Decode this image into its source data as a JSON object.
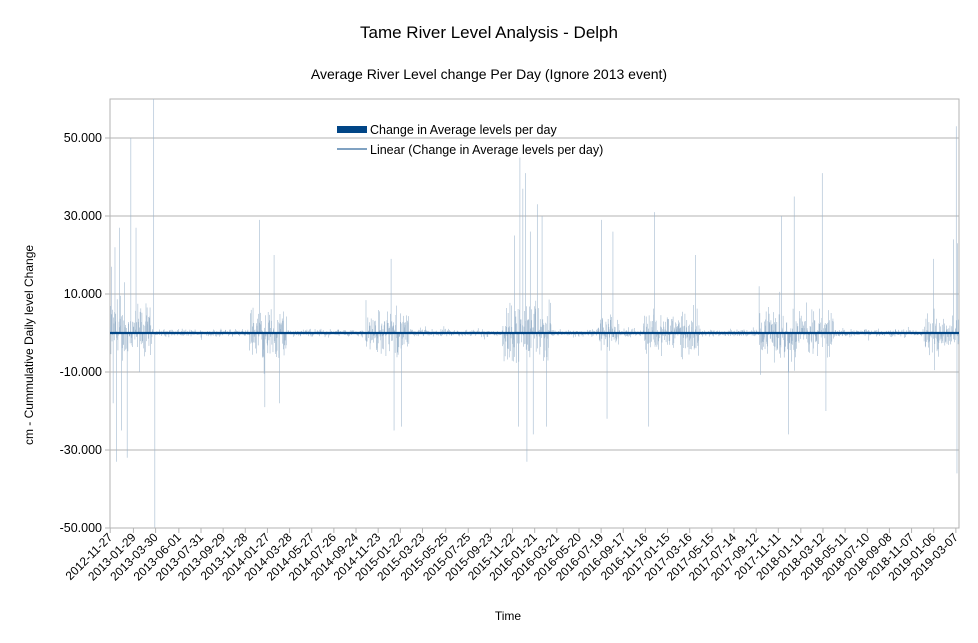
{
  "chart_data": {
    "type": "bar",
    "title": "Tame River Level Analysis - Delph",
    "subtitle": "Average River Level change Per Day (Ignore 2013 event)",
    "xlabel": "Time",
    "ylabel": "cm - Cummulative Daily level Change",
    "ylim": [
      -50,
      60
    ],
    "yticks": [
      50,
      30,
      10,
      -10,
      -30,
      -50
    ],
    "ytick_labels": [
      "50.000",
      "30.000",
      "10.000",
      "-10.000",
      "-30.000",
      "-50.000"
    ],
    "grid": true,
    "legend_position": "top-center",
    "x_tick_labels": [
      "2012-11-27",
      "2013-01-29",
      "2013-03-30",
      "2013-06-01",
      "2013-07-31",
      "2013-09-29",
      "2013-11-28",
      "2014-01-27",
      "2014-03-28",
      "2014-05-27",
      "2014-07-26",
      "2014-09-24",
      "2014-11-23",
      "2015-01-22",
      "2015-03-23",
      "2015-05-25",
      "2015-07-25",
      "2015-09-23",
      "2015-11-22",
      "2016-01-21",
      "2016-03-21",
      "2016-05-20",
      "2016-07-19",
      "2016-09-17",
      "2016-11-16",
      "2017-01-15",
      "2017-03-16",
      "2017-05-15",
      "2017-07-14",
      "2017-09-12",
      "2017-11-11",
      "2018-01-11",
      "2018-03-12",
      "2018-05-11",
      "2018-07-10",
      "2018-09-08",
      "2018-11-07",
      "2019-01-06",
      "2019-03-07"
    ],
    "series": [
      {
        "name": "Change in Average levels per day",
        "kind": "bar",
        "color": "#004586",
        "note": "daily values (approximate), one per day from 2012-11-27 to 2019-03-15",
        "spikes": [
          {
            "date": "2012-12-01",
            "value": 17
          },
          {
            "date": "2012-12-05",
            "value": -18
          },
          {
            "date": "2012-12-10",
            "value": 22
          },
          {
            "date": "2012-12-14",
            "value": -33
          },
          {
            "date": "2012-12-22",
            "value": 27
          },
          {
            "date": "2012-12-28",
            "value": -25
          },
          {
            "date": "2013-01-05",
            "value": 13
          },
          {
            "date": "2013-01-12",
            "value": -32
          },
          {
            "date": "2013-01-22",
            "value": 50
          },
          {
            "date": "2013-02-05",
            "value": 27
          },
          {
            "date": "2013-02-15",
            "value": -10
          },
          {
            "date": "2013-03-25",
            "value": 60
          },
          {
            "date": "2013-03-28",
            "value": -50
          },
          {
            "date": "2014-01-05",
            "value": 29
          },
          {
            "date": "2014-01-20",
            "value": -19
          },
          {
            "date": "2014-02-14",
            "value": 20
          },
          {
            "date": "2014-03-01",
            "value": -18
          },
          {
            "date": "2014-12-28",
            "value": 19
          },
          {
            "date": "2015-01-05",
            "value": -25
          },
          {
            "date": "2015-01-25",
            "value": -24
          },
          {
            "date": "2015-11-27",
            "value": 25
          },
          {
            "date": "2015-12-08",
            "value": -24
          },
          {
            "date": "2015-12-12",
            "value": 45
          },
          {
            "date": "2015-12-20",
            "value": 37
          },
          {
            "date": "2015-12-27",
            "value": 41
          },
          {
            "date": "2015-12-31",
            "value": -33
          },
          {
            "date": "2016-01-09",
            "value": 26
          },
          {
            "date": "2016-01-17",
            "value": -26
          },
          {
            "date": "2016-01-28",
            "value": 33
          },
          {
            "date": "2016-02-10",
            "value": 30
          },
          {
            "date": "2016-02-22",
            "value": -24
          },
          {
            "date": "2016-07-20",
            "value": 29
          },
          {
            "date": "2016-08-04",
            "value": -22
          },
          {
            "date": "2016-08-20",
            "value": 26
          },
          {
            "date": "2016-11-25",
            "value": -24
          },
          {
            "date": "2016-12-10",
            "value": 31
          },
          {
            "date": "2017-04-01",
            "value": 20
          },
          {
            "date": "2017-11-20",
            "value": 30
          },
          {
            "date": "2017-12-08",
            "value": -26
          },
          {
            "date": "2017-12-24",
            "value": 35
          },
          {
            "date": "2018-03-10",
            "value": 41
          },
          {
            "date": "2018-03-20",
            "value": -20
          },
          {
            "date": "2019-01-05",
            "value": 19
          },
          {
            "date": "2019-02-28",
            "value": 24
          },
          {
            "date": "2019-03-08",
            "value": 53
          },
          {
            "date": "2019-03-10",
            "value": -36
          },
          {
            "date": "2019-03-12",
            "value": 23
          }
        ]
      },
      {
        "name": "Linear (Change in Average levels per day)",
        "kind": "trendline",
        "color": "#004586",
        "y_start": 0,
        "y_end": 0
      }
    ]
  }
}
